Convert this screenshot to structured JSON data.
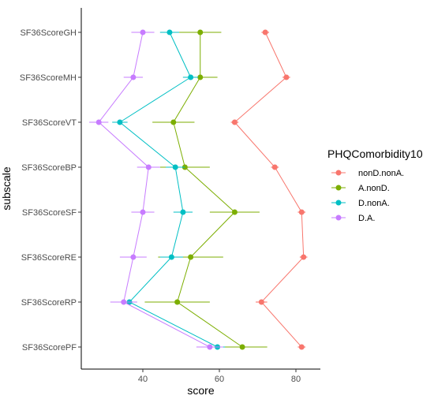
{
  "chart_data": {
    "type": "line",
    "xlabel": "score",
    "ylabel": "subscale",
    "xlim": [
      23.5,
      85.5
    ],
    "x_ticks": [
      40,
      60,
      80
    ],
    "categories": [
      "SF36ScoreGH",
      "SF36ScoreMH",
      "SF36ScoreVT",
      "SF36ScoreBP",
      "SF36ScoreSF",
      "SF36ScoreRE",
      "SF36ScoreRP",
      "SF36ScorePF"
    ],
    "legend": {
      "title": "PHQComorbidity10",
      "position": "right"
    },
    "grid": false,
    "series": [
      {
        "name": "nonD.nonA.",
        "color": "#F8766D",
        "values": [
          72,
          77.5,
          64,
          74.5,
          81.5,
          82,
          71,
          81.5
        ],
        "errors": [
          1,
          1,
          1,
          1,
          1,
          1,
          1.5,
          1
        ]
      },
      {
        "name": "A.nonD.",
        "color": "#7CAE00",
        "values": [
          55,
          55,
          48,
          51,
          64,
          52.5,
          49,
          66
        ],
        "errors": [
          5.5,
          4.5,
          5.5,
          6.5,
          6.5,
          8.5,
          8.5,
          6.5
        ]
      },
      {
        "name": "D.nonA.",
        "color": "#00BFC4",
        "values": [
          47,
          52.5,
          34,
          48.5,
          50.5,
          47.5,
          36.5,
          59.5
        ],
        "errors": [
          2.5,
          2,
          2,
          2.5,
          2.5,
          3,
          2,
          2
        ]
      },
      {
        "name": "D.A.",
        "color": "#C77CFF",
        "values": [
          40,
          37.5,
          28.5,
          41.5,
          40,
          37.5,
          35,
          57.5
        ],
        "errors": [
          3,
          2.5,
          2.5,
          3,
          3,
          3.5,
          3.5,
          3.5
        ]
      }
    ]
  }
}
